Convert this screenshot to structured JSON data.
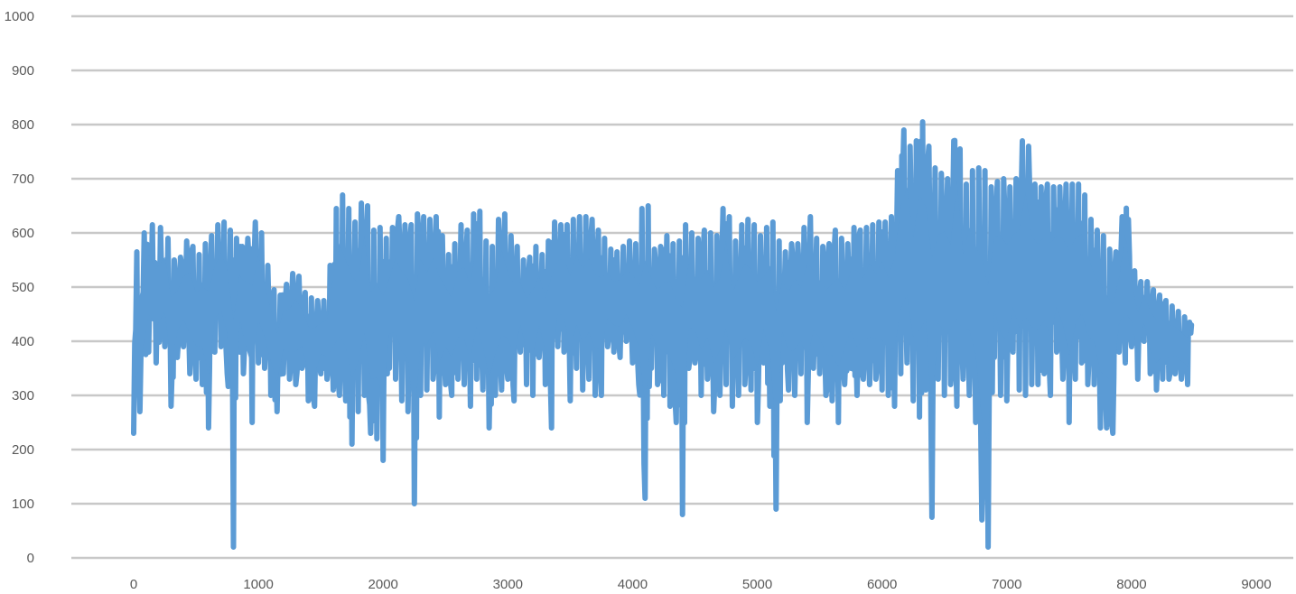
{
  "chart_data": {
    "type": "line",
    "title": "",
    "xlabel": "",
    "ylabel": "",
    "xlim": [
      -1000,
      9000
    ],
    "ylim": [
      0,
      1000
    ],
    "x_ticks": [
      "0",
      "1000",
      "2000",
      "3000",
      "4000",
      "5000",
      "6000",
      "7000",
      "8000",
      "9000"
    ],
    "y_ticks": [
      "0",
      "100",
      "200",
      "300",
      "400",
      "500",
      "600",
      "700",
      "800",
      "900",
      "1000"
    ],
    "grid": true,
    "legend": "none",
    "colors": {
      "series": "#5b9bd5",
      "grid": "#c8c8c8",
      "text": "#595959"
    },
    "series": [
      {
        "color": "#5b9bd5",
        "x_start": 0,
        "x_end": 8480,
        "x": [
          0,
          50,
          120,
          180,
          250,
          300,
          350,
          400,
          450,
          500,
          550,
          600,
          650,
          700,
          750,
          800,
          850,
          860,
          880,
          950,
          1000,
          1050,
          1100,
          1150,
          1200,
          1250,
          1300,
          1350,
          1400,
          1450,
          1500,
          1550,
          1600,
          1650,
          1700,
          1750,
          1800,
          1850,
          1900,
          1950,
          2000,
          2050,
          2100,
          2150,
          2200,
          2250,
          2300,
          2350,
          2400,
          2450,
          2500,
          2550,
          2600,
          2650,
          2700,
          2750,
          2800,
          2850,
          2900,
          2950,
          3000,
          3050,
          3100,
          3150,
          3200,
          3250,
          3300,
          3350,
          3400,
          3450,
          3500,
          3550,
          3600,
          3650,
          3700,
          3750,
          3800,
          3850,
          3900,
          3950,
          4000,
          4050,
          4100,
          4150,
          4200,
          4250,
          4300,
          4350,
          4400,
          4450,
          4500,
          4550,
          4600,
          4650,
          4700,
          4750,
          4800,
          4850,
          4900,
          4950,
          5000,
          5050,
          5100,
          5150,
          5200,
          5250,
          5300,
          5350,
          5400,
          5450,
          5500,
          5550,
          5600,
          5650,
          5700,
          5750,
          5800,
          5850,
          5900,
          5950,
          6000,
          6050,
          6100,
          6150,
          6200,
          6250,
          6300,
          6350,
          6400,
          6450,
          6500,
          6550,
          6600,
          6650,
          6700,
          6750,
          6800,
          6850,
          6900,
          6950,
          7000,
          7050,
          7100,
          7150,
          7200,
          7250,
          7300,
          7350,
          7400,
          7450,
          7500,
          7550,
          7600,
          7650,
          7700,
          7750,
          7800,
          7850,
          7900,
          7950,
          8000,
          8050,
          8100,
          8150,
          8200,
          8250,
          8300,
          8350,
          8400,
          8450,
          8480
        ],
        "low": [
          230,
          270,
          380,
          360,
          390,
          280,
          370,
          390,
          340,
          330,
          320,
          240,
          380,
          390,
          340,
          20,
          380,
          380,
          340,
          250,
          360,
          350,
          300,
          270,
          340,
          330,
          320,
          350,
          290,
          280,
          340,
          330,
          310,
          300,
          290,
          210,
          270,
          300,
          230,
          220,
          180,
          350,
          330,
          290,
          270,
          100,
          300,
          310,
          330,
          260,
          320,
          300,
          330,
          320,
          280,
          330,
          310,
          240,
          300,
          310,
          330,
          290,
          380,
          320,
          300,
          370,
          320,
          240,
          390,
          380,
          290,
          350,
          310,
          330,
          300,
          300,
          390,
          380,
          370,
          400,
          360,
          320,
          110,
          350,
          320,
          300,
          280,
          250,
          80,
          350,
          360,
          300,
          330,
          270,
          300,
          320,
          280,
          300,
          320,
          310,
          250,
          360,
          280,
          90,
          360,
          310,
          300,
          340,
          250,
          350,
          340,
          300,
          290,
          250,
          320,
          350,
          300,
          330,
          320,
          330,
          310,
          300,
          280,
          340,
          360,
          290,
          260,
          310,
          75,
          330,
          300,
          320,
          280,
          330,
          300,
          250,
          70,
          20,
          370,
          300,
          290,
          380,
          310,
          300,
          320,
          320,
          340,
          300,
          380,
          330,
          250,
          330,
          360,
          320,
          320,
          240,
          240,
          230,
          380,
          360,
          390,
          330,
          400,
          340,
          310,
          330,
          330,
          340,
          330,
          320,
          430
        ],
        "high": [
          560,
          570,
          630,
          600,
          620,
          560,
          540,
          570,
          600,
          550,
          570,
          590,
          600,
          630,
          610,
          600,
          580,
          570,
          580,
          600,
          640,
          560,
          520,
          470,
          500,
          510,
          540,
          500,
          480,
          480,
          470,
          480,
          600,
          690,
          650,
          640,
          600,
          710,
          590,
          620,
          600,
          580,
          640,
          620,
          610,
          620,
          650,
          610,
          640,
          620,
          570,
          550,
          610,
          620,
          590,
          680,
          600,
          570,
          580,
          670,
          600,
          590,
          560,
          540,
          570,
          580,
          540,
          630,
          610,
          620,
          610,
          640,
          620,
          640,
          610,
          600,
          580,
          560,
          570,
          580,
          590,
          570,
          720,
          580,
          560,
          590,
          600,
          560,
          610,
          620,
          580,
          600,
          610,
          590,
          600,
          690,
          570,
          600,
          630,
          620,
          610,
          580,
          640,
          600,
          570,
          560,
          600,
          560,
          660,
          600,
          580,
          570,
          590,
          620,
          560,
          600,
          620,
          590,
          630,
          600,
          640,
          600,
          660,
          770,
          810,
          710,
          830,
          780,
          740,
          700,
          720,
          680,
          860,
          650,
          730,
          700,
          740,
          690,
          680,
          710,
          690,
          680,
          720,
          820,
          700,
          680,
          690,
          690,
          680,
          690,
          690,
          690,
          690,
          650,
          600,
          610,
          580,
          560,
          570,
          690,
          560,
          500,
          520,
          500,
          490,
          480,
          470,
          460,
          450,
          440,
          430
        ]
      }
    ]
  }
}
